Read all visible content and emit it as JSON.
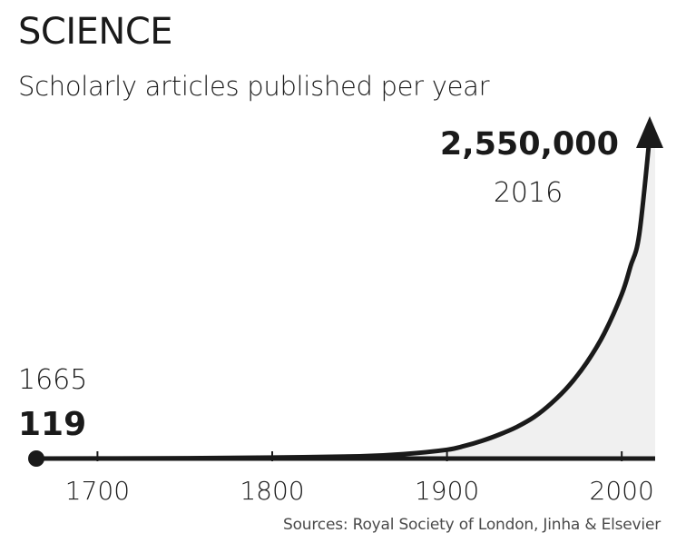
{
  "title": "SCIENCE",
  "subtitle": "Scholarly articles published per year",
  "source": "Sources: Royal Society of London, Jinha & Elsevier",
  "colors": {
    "line": "#1a1a1a",
    "area": "#f0f0f0",
    "text": "#1a1a1a"
  },
  "chart_data": {
    "type": "area",
    "title": "SCIENCE",
    "subtitle": "Scholarly articles published per year",
    "xlim": [
      1665,
      2016
    ],
    "ylim": [
      0,
      2550000
    ],
    "xticks": [
      1700,
      1800,
      1900,
      2000
    ],
    "tick_labels": [
      "1700",
      "1800",
      "1900",
      "2000"
    ],
    "grid": false,
    "x": [
      1665,
      1700,
      1750,
      1800,
      1850,
      1875,
      1900,
      1910,
      1920,
      1930,
      1940,
      1950,
      1960,
      1970,
      1980,
      1990,
      2000,
      2005,
      2010,
      2016
    ],
    "values": [
      119,
      1000,
      3000,
      8000,
      18000,
      35000,
      70000,
      100000,
      140000,
      190000,
      250000,
      330000,
      440000,
      580000,
      760000,
      990000,
      1300000,
      1520000,
      1770000,
      2550000
    ],
    "annotations": [
      {
        "year": "1665",
        "value": "119"
      },
      {
        "year": "2016",
        "value": "2,550,000"
      }
    ]
  }
}
